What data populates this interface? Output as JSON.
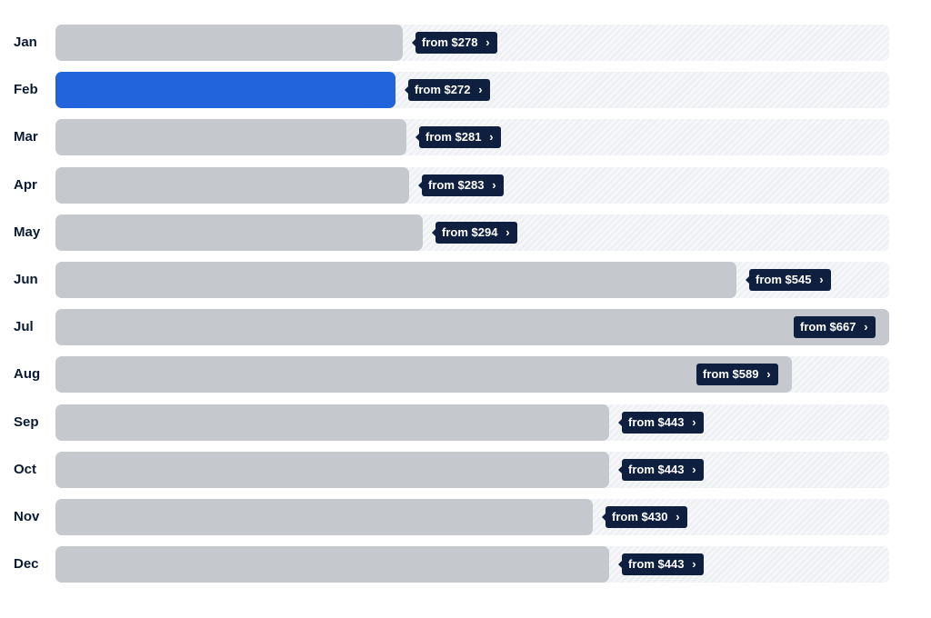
{
  "colors": {
    "bar": "#c5c9cd",
    "selected_bar": "#2264dc",
    "track": "#eef0f3",
    "tag_bg": "#0e1f3f",
    "label": "#0b1a33"
  },
  "icons": {
    "tag_arrow": "chevron-right-icon"
  },
  "selected_month": "Feb",
  "chart_data": {
    "type": "bar",
    "orientation": "horizontal",
    "title": "",
    "xlabel": "",
    "ylabel": "",
    "categories": [
      "Jan",
      "Feb",
      "Mar",
      "Apr",
      "May",
      "Jun",
      "Jul",
      "Aug",
      "Sep",
      "Oct",
      "Nov",
      "Dec"
    ],
    "values": [
      278,
      272,
      281,
      283,
      294,
      545,
      667,
      589,
      443,
      443,
      430,
      443
    ],
    "labels": [
      "from $278",
      "from $272",
      "from $281",
      "from $283",
      "from $294",
      "from $545",
      "from $667",
      "from $589",
      "from $443",
      "from $443",
      "from $430",
      "from $443"
    ],
    "xlim": [
      0,
      667
    ],
    "grid": false,
    "legend": "none"
  }
}
